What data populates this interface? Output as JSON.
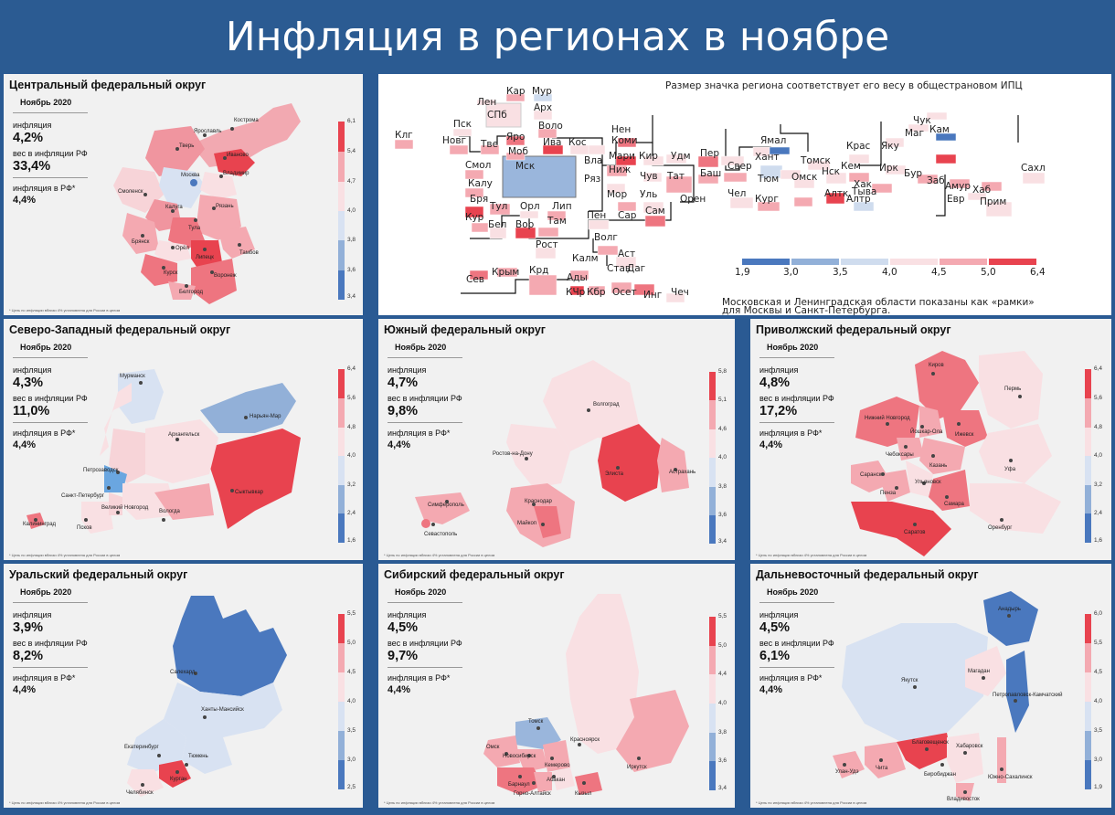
{
  "title": "Инфляция в регионах в ноябре",
  "footnote": "* Цель по инфляции вблизи 4% установлена для России в целом",
  "panels": {
    "cfo": {
      "title": "Центральный федеральный округ",
      "month": "Ноябрь 2020",
      "infl_label": "инфляция",
      "infl": "4,2%",
      "weight_label": "вес в инфляции РФ",
      "weight": "33,4%",
      "rf_label": "инфляция в РФ*",
      "rf": "4,4%",
      "scale": [
        "6,1",
        "5,4",
        "4,7",
        "4,0",
        "3,8",
        "3,6",
        "3,4"
      ],
      "cities": [
        "Кострома",
        "Ярославль",
        "Тверь",
        "Иваново",
        "Москва",
        "Владимир",
        "Смоленск",
        "Калуга",
        "Рязань",
        "Тула",
        "Брянск",
        "Орёл",
        "Липецк",
        "Тамбов",
        "Курск",
        "Воронеж",
        "Белгород"
      ]
    },
    "szfo": {
      "title": "Северо-Западный федеральный округ",
      "month": "Ноябрь 2020",
      "infl_label": "инфляция",
      "infl": "4,3%",
      "weight_label": "вес в инфляции РФ",
      "weight": "11,0%",
      "rf_label": "инфляция в РФ*",
      "rf": "4,4%",
      "scale": [
        "6,4",
        "5,6",
        "4,8",
        "4,0",
        "3,2",
        "2,4",
        "1,6"
      ],
      "cities": [
        "Мурманск",
        "Нарьян-Мар",
        "Архангельск",
        "Петрозаводск",
        "Сыктывкар",
        "Санкт-Петербург",
        "Великий Новгород",
        "Вологда",
        "Псков",
        "Калининград"
      ]
    },
    "ufo": {
      "title": "Южный федеральный округ",
      "month": "Ноябрь 2020",
      "infl_label": "инфляция",
      "infl": "4,7%",
      "weight_label": "вес в инфляции РФ",
      "weight": "9,8%",
      "rf_label": "инфляция в РФ*",
      "rf": "4,4%",
      "scale": [
        "5,8",
        "5,1",
        "4,6",
        "4,0",
        "3,8",
        "3,6",
        "3,4"
      ],
      "cities": [
        "Волгоград",
        "Ростов-на-Дону",
        "Элиста",
        "Астрахань",
        "Симферополь",
        "Краснодар",
        "Севастополь",
        "Майкоп"
      ]
    },
    "pfo": {
      "title": "Приволжский федеральный округ",
      "month": "Ноябрь 2020",
      "infl_label": "инфляция",
      "infl": "4,8%",
      "weight_label": "вес в инфляции РФ",
      "weight": "17,2%",
      "rf_label": "инфляция в РФ*",
      "rf": "4,4%",
      "scale": [
        "6,4",
        "5,6",
        "4,8",
        "4,0",
        "3,2",
        "2,4",
        "1,6"
      ],
      "cities": [
        "Киров",
        "Пермь",
        "Нижний Новгород",
        "Йошкар-Ола",
        "Ижевск",
        "Чебоксары",
        "Казань",
        "Саранск",
        "Уфа",
        "Ульяновск",
        "Пенза",
        "Самара",
        "Оренбург",
        "Саратов"
      ]
    },
    "urfo": {
      "title": "Уральский федеральный округ",
      "month": "Ноябрь 2020",
      "infl_label": "инфляция",
      "infl": "3,9%",
      "weight_label": "вес в инфляции РФ",
      "weight": "8,2%",
      "rf_label": "инфляция в РФ*",
      "rf": "4,4%",
      "scale": [
        "5,5",
        "5,0",
        "4,5",
        "4,0",
        "3,5",
        "3,0",
        "2,5"
      ],
      "cities": [
        "Салехард",
        "Ханты-Мансийск",
        "Екатеринбург",
        "Тюмень",
        "Челябинск",
        "Курган"
      ]
    },
    "sfo": {
      "title": "Сибирский федеральный округ",
      "month": "Ноябрь 2020",
      "infl_label": "инфляция",
      "infl": "4,5%",
      "weight_label": "вес в инфляции РФ",
      "weight": "9,7%",
      "rf_label": "инфляция в РФ*",
      "rf": "4,4%",
      "scale": [
        "5,5",
        "5,0",
        "4,4",
        "4,0",
        "3,8",
        "3,6",
        "3,4"
      ],
      "cities": [
        "Томск",
        "Омск",
        "Новосибирск",
        "Кемерово",
        "Красноярск",
        "Барнаул",
        "Абакан",
        "Горно-Алтайск",
        "Кызыл",
        "Иркутск"
      ]
    },
    "dfo": {
      "title": "Дальневосточный федеральный округ",
      "month": "Ноябрь 2020",
      "infl_label": "инфляция",
      "infl": "4,5%",
      "weight_label": "вес в инфляции РФ",
      "weight": "6,1%",
      "rf_label": "инфляция в РФ*",
      "rf": "4,4%",
      "scale": [
        "6,0",
        "5,5",
        "4,5",
        "4,0",
        "3,5",
        "3,0",
        "1,9"
      ],
      "cities": [
        "Анадырь",
        "Якутск",
        "Магадан",
        "Петропавловск-Камчатский",
        "Улан-Удэ",
        "Чита",
        "Благовещенск",
        "Хабаровск",
        "Биробиджан",
        "Южно-Сахалинск",
        "Владивосток"
      ]
    }
  },
  "tilemap": {
    "legend_top": "Размер значка региона соответствует его весу в общестрановом ИПЦ",
    "legend_bottom_1": "Московская и Ленинградская области показаны как «рамки»",
    "legend_bottom_2": "для Москвы и Санкт-Петербурга.",
    "scale": [
      "1,9",
      "3,0",
      "3,5",
      "4,0",
      "4,5",
      "5,0",
      "6,4"
    ],
    "scale_colors": [
      "#4a78be",
      "#92b0d8",
      "#cfdcee",
      "#f9e0e3",
      "#f4a9b1",
      "#ee7580",
      "#e8434f"
    ]
  }
}
